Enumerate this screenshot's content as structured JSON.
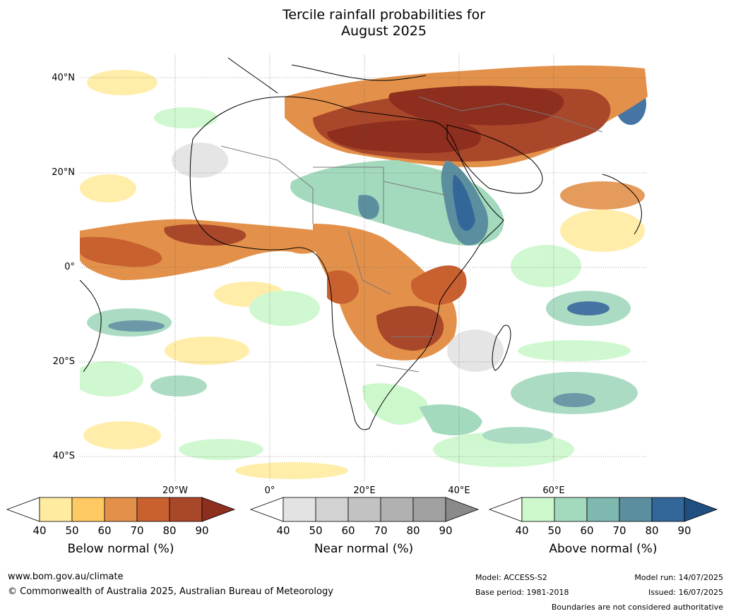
{
  "title_line1": "Tercile rainfall probabilities for",
  "title_line2": "August 2025",
  "lat_labels": [
    "40°N",
    "20°N",
    "0°",
    "20°S",
    "40°S"
  ],
  "lon_labels": [
    "20°W",
    "0°",
    "20°E",
    "40°E",
    "60°E"
  ],
  "colorbars": [
    {
      "label": "Below normal (%)",
      "ticks": [
        "40",
        "50",
        "60",
        "70",
        "80",
        "90"
      ],
      "colors": [
        "#ffffff",
        "#ffeca0",
        "#fec863",
        "#e3914a",
        "#c86030",
        "#a9472a",
        "#8d2e1e"
      ]
    },
    {
      "label": "Near normal (%)",
      "ticks": [
        "40",
        "50",
        "60",
        "70",
        "80",
        "90"
      ],
      "colors": [
        "#ffffff",
        "#e3e3e3",
        "#d2d2d2",
        "#c2c2c2",
        "#b1b1b1",
        "#a1a1a1",
        "#8a8a8a"
      ]
    },
    {
      "label": "Above normal (%)",
      "ticks": [
        "40",
        "50",
        "60",
        "70",
        "80",
        "90"
      ],
      "colors": [
        "#ffffff",
        "#ccf8cc",
        "#a3d9bd",
        "#7eb8af",
        "#5b8f9f",
        "#336699",
        "#1f4f80"
      ]
    }
  ],
  "footer": {
    "website": "www.bom.gov.au/climate",
    "copyright": "© Commonwealth of Australia 2025, Australian Bureau of Meteorology",
    "model": "Model: ACCESS-S2",
    "base_period": "Base period: 1981-2018",
    "model_run": "Model run: 14/07/2025",
    "issued": "Issued: 16/07/2025",
    "disclaimer": "Boundaries are not considered authoritative"
  }
}
